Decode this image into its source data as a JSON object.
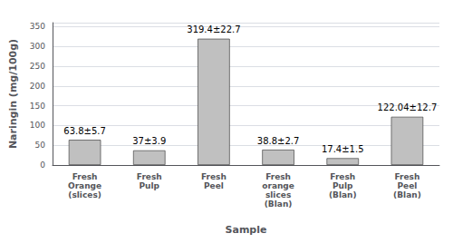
{
  "chart_data": {
    "type": "bar",
    "categories": [
      "Fresh\nOrange\n(slices)",
      "Fresh\nPulp",
      "Fresh\nPeel",
      "Fresh\norange\nslices\n(Blan)",
      "Fresh\nPulp\n(Blan)",
      "Fresh\nPeel\n(Blan)"
    ],
    "values": [
      63.8,
      37.0,
      319.4,
      38.8,
      17.4,
      122.04
    ],
    "value_labels": [
      "63.8±5.7",
      "37±3.9",
      "319.4±22.7",
      "38.8±2.7",
      "17.4±1.5",
      "122.04±12.7"
    ],
    "data_labels": true,
    "color": "#c0c0c0",
    "xlabel": "Sample",
    "ylabel": "Naringin (mg/100g)",
    "ylim": [
      0,
      360
    ],
    "yticks": [
      0,
      50,
      100,
      150,
      200,
      250,
      300,
      350
    ],
    "grid": true
  }
}
